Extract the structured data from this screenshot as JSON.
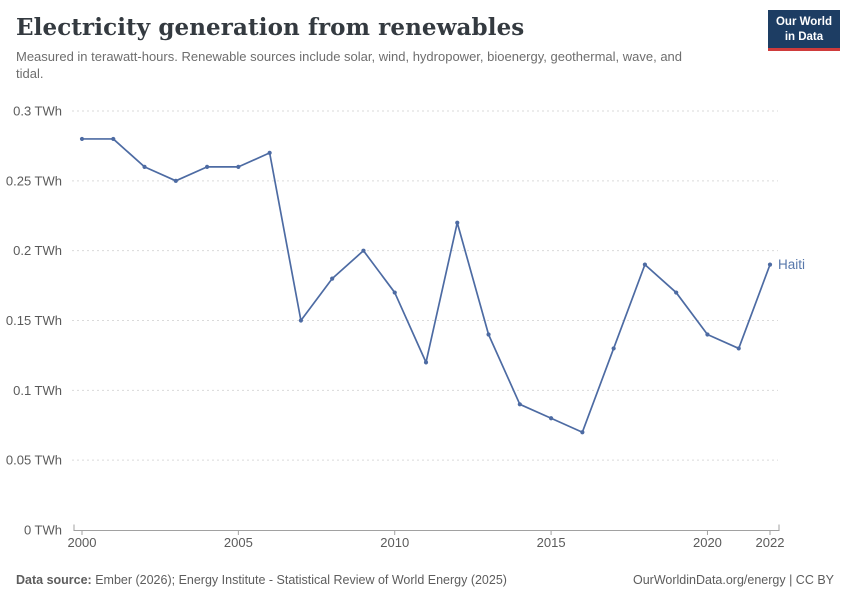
{
  "header": {
    "title": "Electricity generation from renewables",
    "subtitle": "Measured in terawatt-hours. Renewable sources include solar, wind, hydropower, bioenergy, geothermal, wave, and tidal.",
    "logo": {
      "line1": "Our World",
      "line2": "in Data"
    }
  },
  "chart_data": {
    "type": "line",
    "title": "Electricity generation from renewables",
    "subtitle": "Measured in terawatt-hours. Renewable sources include solar, wind, hydropower, bioenergy, geothermal, wave, and tidal.",
    "series": [
      {
        "name": "Haiti",
        "x": [
          2000,
          2001,
          2002,
          2003,
          2004,
          2005,
          2006,
          2007,
          2008,
          2009,
          2010,
          2011,
          2012,
          2013,
          2014,
          2015,
          2016,
          2017,
          2018,
          2019,
          2020,
          2021,
          2022
        ],
        "values": [
          0.28,
          0.28,
          0.26,
          0.25,
          0.26,
          0.26,
          0.27,
          0.15,
          0.18,
          0.2,
          0.17,
          0.12,
          0.22,
          0.14,
          0.09,
          0.08,
          0.07,
          0.13,
          0.19,
          0.17,
          0.14,
          0.13,
          0.19
        ]
      }
    ],
    "xlabel": "",
    "ylabel": "",
    "xlim": [
      2000,
      2022
    ],
    "ylim": [
      0,
      0.3
    ],
    "x_ticks": [
      2000,
      2005,
      2010,
      2015,
      2020,
      2022
    ],
    "y_ticks": [
      0,
      0.05,
      0.1,
      0.15,
      0.2,
      0.25,
      0.3
    ],
    "y_unit": "TWh",
    "grid": "horizontal-dashed",
    "legend_position": "end-of-line"
  },
  "footer": {
    "source_label": "Data source:",
    "source_text": "Ember (2026); Energy Institute - Statistical Review of World Energy (2025)",
    "credit": "OurWorldinData.org/energy | CC BY"
  },
  "colors": {
    "accent_line": "#4d6ba3",
    "series_label": "#5878ab",
    "grid": "#dadada",
    "axis": "#a1a1a1",
    "tick_label": "#5b5b5b",
    "logo_bg": "#1d3d63",
    "logo_red": "#cf3b3b"
  }
}
